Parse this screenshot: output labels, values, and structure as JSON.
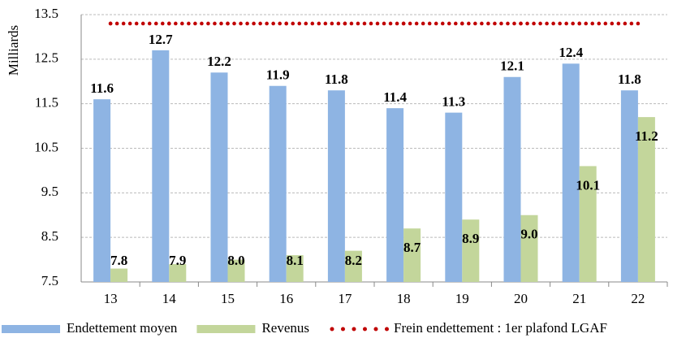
{
  "chart_data": {
    "type": "bar",
    "y_label": "Milliards",
    "categories": [
      "13",
      "14",
      "15",
      "16",
      "17",
      "18",
      "19",
      "20",
      "21",
      "22"
    ],
    "series": [
      {
        "name": "Endettement moyen",
        "color": "#8eb4e3",
        "values": [
          11.6,
          12.7,
          12.2,
          11.9,
          11.8,
          11.4,
          11.3,
          12.1,
          12.4,
          11.8
        ]
      },
      {
        "name": "Revenus",
        "color": "#c3d69b",
        "values": [
          7.8,
          7.9,
          8.0,
          8.1,
          8.2,
          8.7,
          8.9,
          9.0,
          10.1,
          11.2
        ],
        "value_labels": [
          "7.8",
          "7.9",
          "8.0",
          "8.1",
          "8.2",
          "8.7",
          "8.9",
          "9.0",
          "10.1",
          "11.2"
        ]
      },
      {
        "name": "Frein endettement : 1er plafond LGAF",
        "color": "#c00000",
        "type": "line",
        "style": "dotted",
        "values": [
          13.3,
          13.3,
          13.3,
          13.3,
          13.3,
          13.3,
          13.3,
          13.3,
          13.3,
          13.3
        ]
      }
    ],
    "ylim": [
      7.5,
      13.5
    ],
    "yticks": [
      7.5,
      8.5,
      9.5,
      10.5,
      11.5,
      12.5,
      13.5
    ],
    "grid": true,
    "legend": "bottom"
  }
}
